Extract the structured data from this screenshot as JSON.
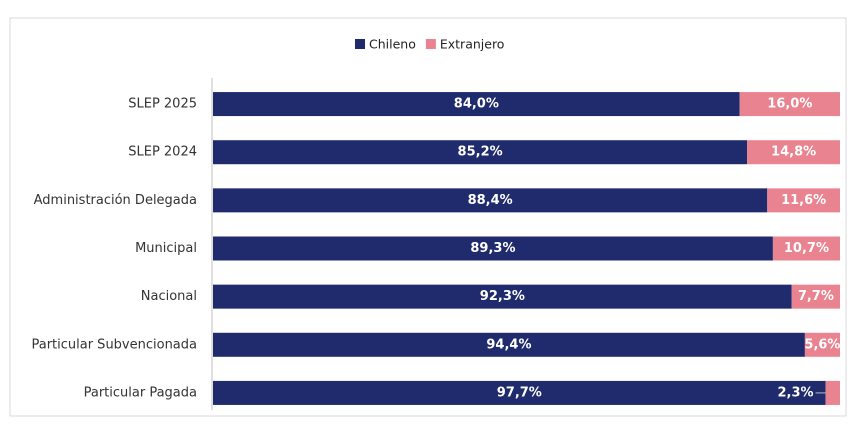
{
  "chart_data": {
    "type": "stacked-bar-horizontal",
    "categories": [
      "SLEP 2025",
      "SLEP 2024",
      "Administración Delegada",
      "Municipal",
      "Nacional",
      "Particular Subvencionada",
      "Particular Pagada"
    ],
    "series": [
      {
        "name": "Chileno",
        "color": "#1f2b6c",
        "values": [
          84.0,
          85.2,
          88.4,
          89.3,
          92.3,
          94.4,
          97.7
        ],
        "value_labels": [
          "84,0%",
          "85,2%",
          "88,4%",
          "89,3%",
          "92,3%",
          "94,4%",
          "97,7%"
        ]
      },
      {
        "name": "Extranjero",
        "color": "#e9838f",
        "values": [
          16.0,
          14.8,
          11.6,
          10.7,
          7.7,
          5.6,
          2.3
        ],
        "value_labels": [
          "16,0%",
          "14,8%",
          "11,6%",
          "10,7%",
          "7,7%",
          "5,6%",
          "2,3%"
        ]
      }
    ],
    "xlim": [
      0,
      100
    ],
    "legend": "top"
  }
}
